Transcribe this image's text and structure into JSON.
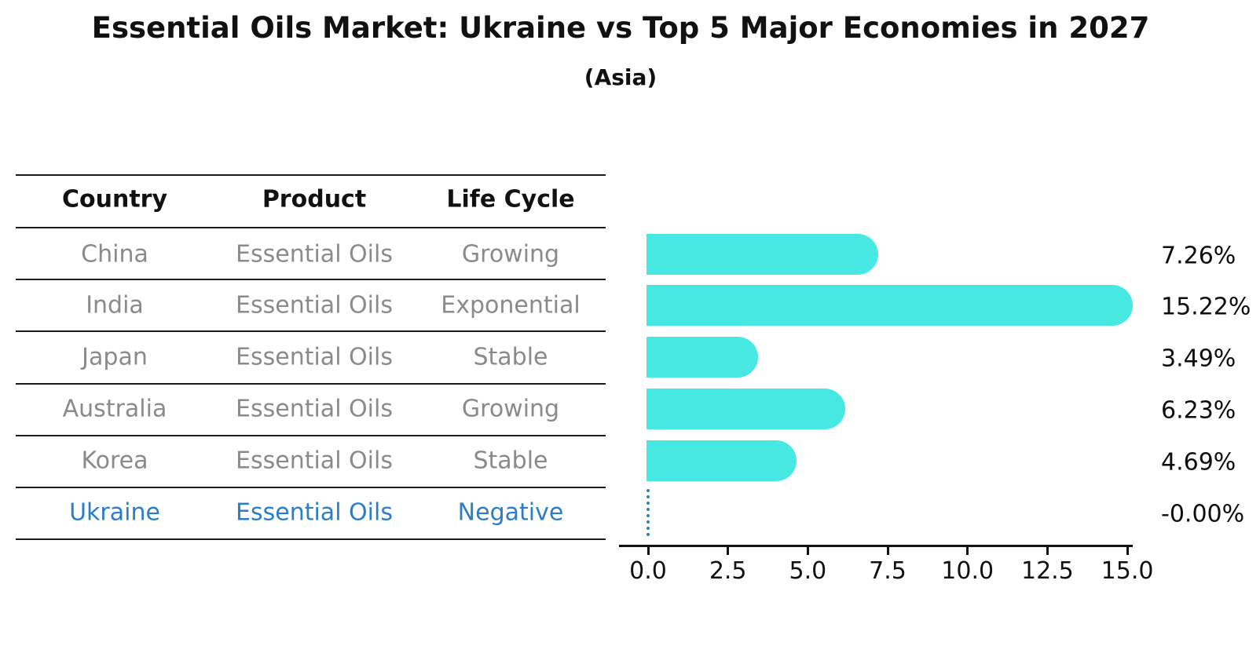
{
  "figure": {
    "title": "Essential Oils Market: Ukraine vs Top 5 Major Economies in 2027",
    "subtitle": "(Asia)"
  },
  "table": {
    "headers": [
      "Country",
      "Product",
      "Life Cycle"
    ],
    "rows": [
      {
        "country": "China",
        "product": "Essential Oils",
        "life_cycle": "Growing",
        "highlight": false
      },
      {
        "country": "India",
        "product": "Essential Oils",
        "life_cycle": "Exponential",
        "highlight": false
      },
      {
        "country": "Japan",
        "product": "Essential Oils",
        "life_cycle": "Stable",
        "highlight": false
      },
      {
        "country": "Australia",
        "product": "Essential Oils",
        "life_cycle": "Growing",
        "highlight": false
      },
      {
        "country": "Korea",
        "product": "Essential Oils",
        "life_cycle": "Stable",
        "highlight": false
      },
      {
        "country": "Ukraine",
        "product": "Essential Oils",
        "life_cycle": "Negative",
        "highlight": true
      }
    ]
  },
  "chart_data": {
    "type": "bar",
    "orientation": "horizontal",
    "title": "Essential Oils Market: Ukraine vs Top 5 Major Economies in 2027",
    "subtitle": "(Asia)",
    "categories": [
      "China",
      "India",
      "Japan",
      "Australia",
      "Korea",
      "Ukraine"
    ],
    "values": [
      7.26,
      15.22,
      3.49,
      6.23,
      4.69,
      -0.0
    ],
    "value_labels": [
      "7.26%",
      "15.22%",
      "3.49%",
      "6.23%",
      "4.69%",
      "-0.00%"
    ],
    "xlim": [
      0,
      15.75
    ],
    "x_ticks": [
      0,
      2.5,
      5,
      7.5,
      10,
      12.5,
      15
    ],
    "x_tick_labels": [
      "0.0",
      "2.5",
      "5.0",
      "7.5",
      "10.0",
      "12.5",
      "15.0"
    ],
    "grid": false,
    "legend": null,
    "colors": {
      "bar": "#47e8e2",
      "highlight_text": "#2b7dc9",
      "zero_marker": "#2f7ec4",
      "table_text": "#8a8a8a",
      "header_text": "#111111",
      "axis": "#111111"
    }
  }
}
